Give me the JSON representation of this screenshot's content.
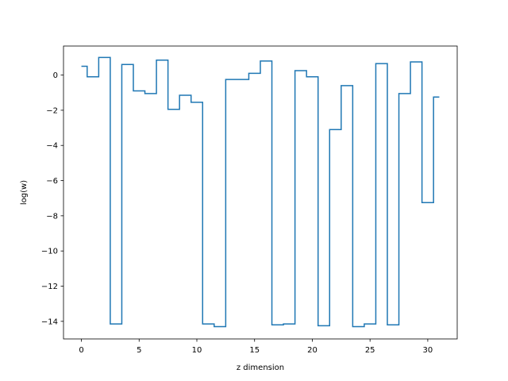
{
  "chart_data": {
    "type": "line",
    "drawstyle": "steps-mid",
    "title": "",
    "xlabel": "z dimension",
    "ylabel": "log(w)",
    "xlim": [
      -1.55,
      32.55
    ],
    "ylim": [
      -15.0,
      1.65
    ],
    "xticks": [
      0,
      5,
      10,
      15,
      20,
      25,
      30
    ],
    "yticks": [
      -14,
      -12,
      -10,
      -8,
      -6,
      -4,
      -2,
      0
    ],
    "grid": false,
    "legend": false,
    "color": "#1f77b4",
    "x": [
      0,
      1,
      2,
      3,
      4,
      5,
      6,
      7,
      8,
      9,
      10,
      11,
      12,
      13,
      14,
      15,
      16,
      17,
      18,
      19,
      20,
      21,
      22,
      23,
      24,
      25,
      26,
      27,
      28,
      29,
      30,
      31
    ],
    "y": [
      0.5,
      -0.1,
      1.0,
      -14.15,
      0.6,
      -0.9,
      -1.05,
      0.85,
      -1.95,
      -1.15,
      -1.55,
      -14.15,
      -14.3,
      -0.25,
      -0.25,
      0.1,
      0.8,
      -14.2,
      -14.15,
      0.25,
      -0.1,
      -14.25,
      -3.1,
      -0.6,
      -14.3,
      -14.15,
      0.65,
      -14.2,
      -1.05,
      0.75,
      -7.25,
      -1.25
    ]
  }
}
